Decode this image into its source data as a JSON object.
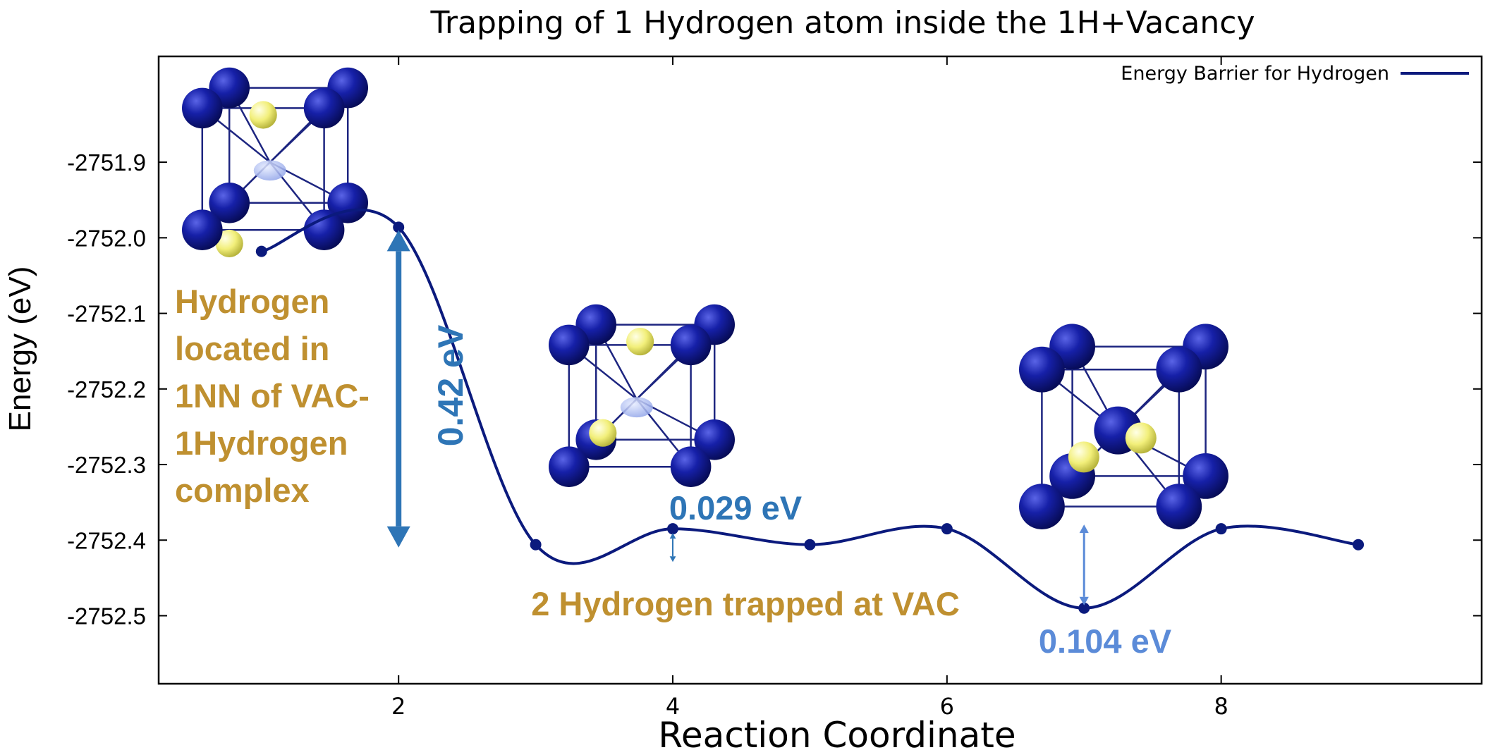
{
  "chart_data": {
    "type": "line",
    "title": "Trapping of 1 Hydrogen atom inside the 1H+Vacancy",
    "xlabel": "Reaction Coordinate",
    "ylabel": "Energy (eV)",
    "xlim": [
      0.25,
      9.9
    ],
    "ylim": [
      -2752.59,
      -2751.76
    ],
    "x_ticks": [
      2,
      4,
      6,
      8
    ],
    "y_ticks": [
      -2751.9,
      -2752.0,
      -2752.1,
      -2752.2,
      -2752.3,
      -2752.4,
      -2752.5
    ],
    "y_tick_labels": [
      "-2751.9",
      "-2752.0",
      "-2752.1",
      "-2752.2",
      "-2752.3",
      "-2752.4",
      "-2752.5"
    ],
    "grid": false,
    "legend_position": "top-right",
    "series": [
      {
        "name": "Energy Barrier for Hydrogen",
        "color": "#0b1a7d",
        "x": [
          1,
          2,
          3,
          4,
          5,
          6,
          7,
          8,
          9
        ],
        "y": [
          -2752.018,
          -2751.986,
          -2752.406,
          -2752.385,
          -2752.406,
          -2752.385,
          -2752.49,
          -2752.385,
          -2752.406
        ]
      }
    ],
    "annotations": [
      {
        "id": "barrier_042",
        "text": "0.42 eV",
        "color": "#2e75b6",
        "x": 2,
        "y_from": -2751.986,
        "y_to": -2752.406
      },
      {
        "id": "barrier_0029",
        "text": "0.029 eV",
        "color": "#2e75b6",
        "x": 4,
        "y_from": -2752.385,
        "y_to": -2752.414
      },
      {
        "id": "barrier_0104",
        "text": "0.104 eV",
        "color": "#5b8bd8",
        "x": 7,
        "y_from": -2752.385,
        "y_to": -2752.49
      },
      {
        "id": "hydrogen_located",
        "lines": [
          "Hydrogen",
          "located in",
          "1NN of VAC-",
          "1Hydrogen",
          "complex"
        ],
        "color": "#bf9030"
      },
      {
        "id": "trapped",
        "text": "2 Hydrogen trapped at VAC",
        "color": "#bf9030"
      }
    ]
  },
  "colors": {
    "tungsten_atom": "#0f1a96",
    "hydrogen_atom": "#f2ef7a",
    "bond": "#1d2580"
  },
  "insets": [
    {
      "name": "structure-initial",
      "description_icon": "crystal-structure-icon"
    },
    {
      "name": "structure-saddle",
      "description_icon": "crystal-structure-icon"
    },
    {
      "name": "structure-trapped",
      "description_icon": "crystal-structure-icon"
    }
  ]
}
